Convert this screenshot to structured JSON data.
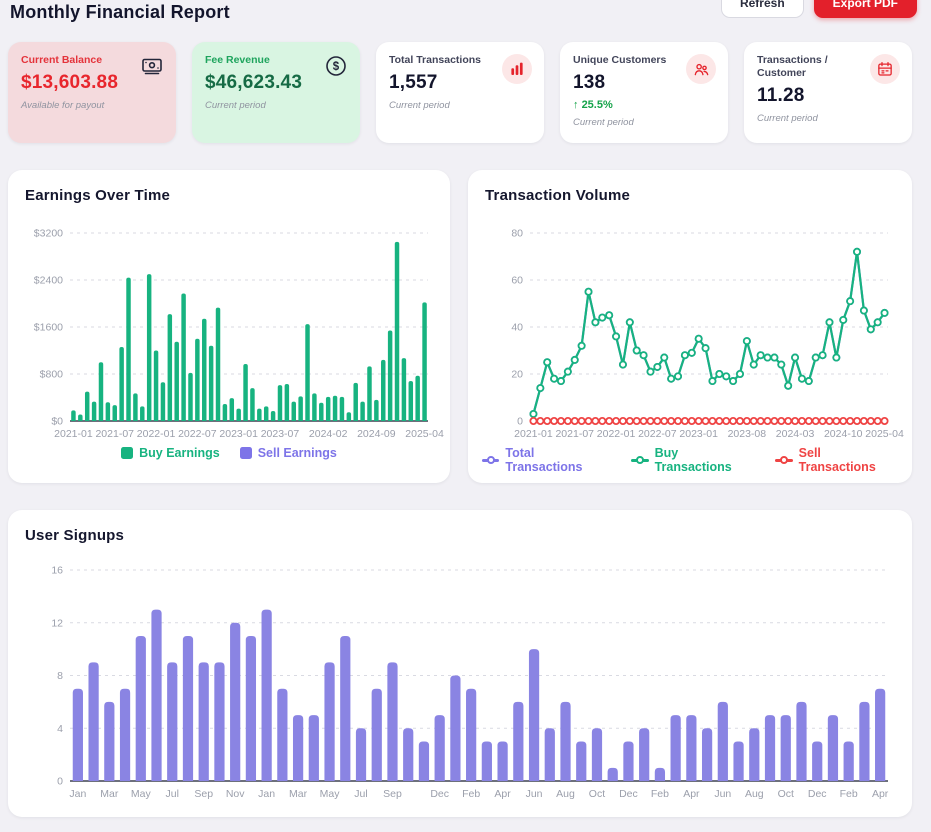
{
  "header": {
    "title": "Monthly Financial Report",
    "refresh_label": "Refresh",
    "export_label": "Export PDF"
  },
  "cards": [
    {
      "title": "Current Balance",
      "value": "$13,603.88",
      "note": "Available for payout",
      "icon": "banknote-icon",
      "theme": "red"
    },
    {
      "title": "Fee Revenue",
      "value": "$46,623.43",
      "note": "Current period",
      "icon": "dollar-circle-icon",
      "theme": "green"
    },
    {
      "title": "Total Transactions",
      "value": "1,557",
      "note": "Current period",
      "icon": "bar-chart-icon",
      "theme": "white"
    },
    {
      "title": "Unique Customers",
      "value": "138",
      "delta_icon": "↑",
      "delta": "25.5%",
      "note": "Current period",
      "icon": "people-icon",
      "theme": "white"
    },
    {
      "title": "Transactions / Customer",
      "value": "11.28",
      "note": "Current period",
      "icon": "calendar-icon",
      "theme": "white"
    }
  ],
  "icons": {
    "dollar_glyph": "$"
  },
  "colors": {
    "accent_green": "#17b380",
    "accent_purple": "#7d74e8",
    "accent_red": "#ef4444",
    "brand_red": "#e3202b",
    "delta_green": "#16a34a",
    "card_pink_bg": "#f4dadd",
    "card_green_bg": "#d9f5e2"
  },
  "chart_data": [
    {
      "type": "bar",
      "title": "Earnings Over Time",
      "categories": [
        "2021-01",
        "2021-02",
        "2021-03",
        "2021-04",
        "2021-05",
        "2021-06",
        "2021-07",
        "2021-08",
        "2021-09",
        "2021-10",
        "2021-11",
        "2021-12",
        "2022-01",
        "2022-02",
        "2022-03",
        "2022-04",
        "2022-05",
        "2022-06",
        "2022-07",
        "2022-08",
        "2022-09",
        "2022-10",
        "2022-11",
        "2022-12",
        "2023-01",
        "2023-02",
        "2023-03",
        "2023-04",
        "2023-05",
        "2023-06",
        "2023-07",
        "2023-08",
        "2023-09",
        "2023-10",
        "2023-11",
        "2023-12",
        "2024-01",
        "2024-02",
        "2024-03",
        "2024-04",
        "2024-05",
        "2024-06",
        "2024-07",
        "2024-08",
        "2024-09",
        "2024-10",
        "2024-11",
        "2024-12",
        "2025-01",
        "2025-02",
        "2025-03",
        "2025-04"
      ],
      "series": [
        {
          "name": "Buy Earnings",
          "color": "#17b380",
          "values": [
            180,
            110,
            500,
            330,
            1000,
            320,
            270,
            1260,
            2440,
            470,
            250,
            2500,
            1200,
            660,
            1820,
            1350,
            2170,
            820,
            1400,
            1740,
            1280,
            1930,
            290,
            390,
            210,
            970,
            560,
            210,
            250,
            170,
            610,
            630,
            330,
            420,
            1650,
            470,
            310,
            410,
            430,
            410,
            150,
            650,
            330,
            930,
            360,
            1040,
            1540,
            3050,
            1070,
            680,
            770,
            2020
          ]
        },
        {
          "name": "Sell Earnings",
          "color": "#7d74e8",
          "values": [
            0,
            0,
            0,
            0,
            0,
            0,
            0,
            0,
            0,
            0,
            0,
            0,
            0,
            0,
            0,
            0,
            0,
            0,
            0,
            0,
            0,
            0,
            0,
            0,
            0,
            0,
            0,
            0,
            0,
            0,
            0,
            0,
            0,
            0,
            0,
            0,
            0,
            0,
            0,
            0,
            0,
            0,
            0,
            0,
            0,
            0,
            0,
            0,
            0,
            0,
            0,
            0
          ]
        }
      ],
      "yticks": [
        "$3200",
        "$2400",
        "$1600",
        "$800",
        "$0"
      ],
      "ylim": [
        0,
        3200
      ],
      "xticks": [
        {
          "i": 0,
          "label": "2021-01"
        },
        {
          "i": 6,
          "label": "2021-07"
        },
        {
          "i": 12,
          "label": "2022-01"
        },
        {
          "i": 18,
          "label": "2022-07"
        },
        {
          "i": 24,
          "label": "2023-01"
        },
        {
          "i": 30,
          "label": "2023-07"
        },
        {
          "i": 37,
          "label": "2024-02"
        },
        {
          "i": 44,
          "label": "2024-09"
        },
        {
          "i": 51,
          "label": "2025-04"
        }
      ],
      "grid": true,
      "legend_position": "bottom"
    },
    {
      "type": "line",
      "title": "Transaction Volume",
      "categories": [
        "2021-01",
        "2021-02",
        "2021-03",
        "2021-04",
        "2021-05",
        "2021-06",
        "2021-07",
        "2021-08",
        "2021-09",
        "2021-10",
        "2021-11",
        "2021-12",
        "2022-01",
        "2022-02",
        "2022-03",
        "2022-04",
        "2022-05",
        "2022-06",
        "2022-07",
        "2022-08",
        "2022-09",
        "2022-10",
        "2022-11",
        "2022-12",
        "2023-01",
        "2023-02",
        "2023-03",
        "2023-04",
        "2023-05",
        "2023-06",
        "2023-07",
        "2023-08",
        "2023-09",
        "2023-10",
        "2023-11",
        "2023-12",
        "2024-01",
        "2024-02",
        "2024-03",
        "2024-04",
        "2024-05",
        "2024-06",
        "2024-07",
        "2024-08",
        "2024-09",
        "2024-10",
        "2024-11",
        "2024-12",
        "2025-01",
        "2025-02",
        "2025-03",
        "2025-04"
      ],
      "series": [
        {
          "name": "Total Transactions",
          "color": "#7d74e8",
          "values": [
            3,
            14,
            25,
            18,
            17,
            21,
            26,
            32,
            55,
            42,
            44,
            45,
            36,
            24,
            42,
            30,
            28,
            21,
            23,
            27,
            18,
            19,
            28,
            29,
            35,
            31,
            17,
            20,
            19,
            17,
            20,
            34,
            24,
            28,
            27,
            27,
            24,
            15,
            27,
            18,
            17,
            27,
            28,
            42,
            27,
            43,
            51,
            72,
            47,
            39,
            42,
            46
          ]
        },
        {
          "name": "Buy Transactions",
          "color": "#17b380",
          "values": [
            3,
            14,
            25,
            18,
            17,
            21,
            26,
            32,
            55,
            42,
            44,
            45,
            36,
            24,
            42,
            30,
            28,
            21,
            23,
            27,
            18,
            19,
            28,
            29,
            35,
            31,
            17,
            20,
            19,
            17,
            20,
            34,
            24,
            28,
            27,
            27,
            24,
            15,
            27,
            18,
            17,
            27,
            28,
            42,
            27,
            43,
            51,
            72,
            47,
            39,
            42,
            46
          ]
        },
        {
          "name": "Sell Transactions",
          "color": "#ef4444",
          "values": [
            0,
            0,
            0,
            0,
            0,
            0,
            0,
            0,
            0,
            0,
            0,
            0,
            0,
            0,
            0,
            0,
            0,
            0,
            0,
            0,
            0,
            0,
            0,
            0,
            0,
            0,
            0,
            0,
            0,
            0,
            0,
            0,
            0,
            0,
            0,
            0,
            0,
            0,
            0,
            0,
            0,
            0,
            0,
            0,
            0,
            0,
            0,
            0,
            0,
            0,
            0,
            0
          ]
        }
      ],
      "yticks": [
        "80",
        "60",
        "40",
        "20",
        "0"
      ],
      "ylim": [
        0,
        80
      ],
      "xticks": [
        {
          "i": 0,
          "label": "2021-01"
        },
        {
          "i": 6,
          "label": "2021-07"
        },
        {
          "i": 12,
          "label": "2022-01"
        },
        {
          "i": 18,
          "label": "2022-07"
        },
        {
          "i": 24,
          "label": "2023-01"
        },
        {
          "i": 31,
          "label": "2023-08"
        },
        {
          "i": 38,
          "label": "2024-03"
        },
        {
          "i": 45,
          "label": "2024-10"
        },
        {
          "i": 51,
          "label": "2025-04"
        }
      ],
      "grid": true,
      "legend_position": "bottom"
    },
    {
      "type": "bar",
      "title": "User Signups",
      "categories": [
        "2021-01",
        "2021-02",
        "2021-03",
        "2021-04",
        "2021-05",
        "2021-06",
        "2021-07",
        "2021-08",
        "2021-09",
        "2021-10",
        "2021-11",
        "2021-12",
        "2022-01",
        "2022-02",
        "2022-03",
        "2022-04",
        "2022-05",
        "2022-06",
        "2022-07",
        "2022-08",
        "2022-09",
        "2022-10",
        "2022-11",
        "2022-12",
        "2023-01",
        "2023-02",
        "2023-03",
        "2023-04",
        "2023-05",
        "2023-06",
        "2023-07",
        "2023-08",
        "2023-09",
        "2023-10",
        "2023-11",
        "2023-12",
        "2024-01",
        "2024-02",
        "2024-03",
        "2024-04",
        "2024-05",
        "2024-06",
        "2024-07",
        "2024-08",
        "2024-09",
        "2024-10",
        "2024-11",
        "2024-12",
        "2025-01",
        "2025-02",
        "2025-03",
        "2025-04"
      ],
      "series": [
        {
          "name": "User Signups",
          "color": "#8a84e3",
          "values": [
            7,
            9,
            6,
            7,
            11,
            13,
            9,
            11,
            9,
            9,
            12,
            11,
            13,
            7,
            5,
            5,
            9,
            11,
            4,
            7,
            9,
            4,
            3,
            5,
            8,
            7,
            3,
            3,
            6,
            10,
            4,
            6,
            3,
            4,
            1,
            3,
            4,
            1,
            5,
            5,
            4,
            6,
            3,
            4,
            5,
            5,
            6,
            3,
            5,
            3,
            6,
            7
          ]
        }
      ],
      "yticks": [
        "16",
        "12",
        "8",
        "4",
        "0"
      ],
      "ylim": [
        0,
        16
      ],
      "xticks": [
        {
          "i": 0,
          "label": "Jan"
        },
        {
          "i": 2,
          "label": "Mar"
        },
        {
          "i": 4,
          "label": "May"
        },
        {
          "i": 6,
          "label": "Jul"
        },
        {
          "i": 8,
          "label": "Sep"
        },
        {
          "i": 10,
          "label": "Nov"
        },
        {
          "i": 12,
          "label": "Jan"
        },
        {
          "i": 14,
          "label": "Mar"
        },
        {
          "i": 16,
          "label": "May"
        },
        {
          "i": 18,
          "label": "Jul"
        },
        {
          "i": 20,
          "label": "Sep"
        },
        {
          "i": 23,
          "label": "Dec"
        },
        {
          "i": 25,
          "label": "Feb"
        },
        {
          "i": 27,
          "label": "Apr"
        },
        {
          "i": 29,
          "label": "Jun"
        },
        {
          "i": 31,
          "label": "Aug"
        },
        {
          "i": 33,
          "label": "Oct"
        },
        {
          "i": 35,
          "label": "Dec"
        },
        {
          "i": 37,
          "label": "Feb"
        },
        {
          "i": 39,
          "label": "Apr"
        },
        {
          "i": 41,
          "label": "Jun"
        },
        {
          "i": 43,
          "label": "Aug"
        },
        {
          "i": 45,
          "label": "Oct"
        },
        {
          "i": 47,
          "label": "Dec"
        },
        {
          "i": 49,
          "label": "Feb"
        },
        {
          "i": 51,
          "label": "Apr"
        }
      ],
      "grid": true,
      "legend_position": "none"
    }
  ]
}
